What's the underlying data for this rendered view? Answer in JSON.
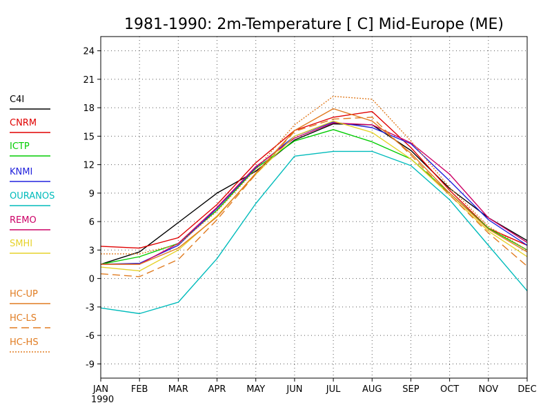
{
  "chart_data": {
    "type": "line",
    "title": "1981-1990: 2m-Temperature [  C] Mid-Europe (ME)",
    "categories": [
      "JAN",
      "FEB",
      "MAR",
      "APR",
      "MAY",
      "JUN",
      "JUL",
      "AUG",
      "SEP",
      "OCT",
      "NOV",
      "DEC"
    ],
    "x_sublabel": "1990",
    "xlabel": "",
    "ylabel": "",
    "ylim": [
      -10.5,
      25.5
    ],
    "yticks": [
      -9,
      -6,
      -3,
      0,
      3,
      6,
      9,
      12,
      15,
      18,
      21,
      24
    ],
    "grid": true,
    "legend_position": "left",
    "series": [
      {
        "name": "C4I",
        "color": "#000000",
        "style": "solid",
        "values": [
          1.5,
          2.8,
          5.9,
          9.0,
          11.3,
          14.6,
          16.3,
          16.2,
          13.5,
          9.5,
          6.4,
          4.0
        ]
      },
      {
        "name": "CNRM",
        "color": "#e00000",
        "style": "solid",
        "values": [
          3.4,
          3.2,
          4.3,
          7.8,
          12.2,
          15.6,
          17.0,
          17.6,
          13.8,
          9.3,
          5.3,
          3.5
        ]
      },
      {
        "name": "ICTP",
        "color": "#00cc00",
        "style": "solid",
        "values": [
          1.5,
          2.3,
          3.7,
          7.2,
          11.6,
          14.5,
          15.7,
          14.4,
          12.6,
          9.0,
          5.3,
          3.0
        ]
      },
      {
        "name": "KNMI",
        "color": "#2222dd",
        "style": "solid",
        "values": [
          1.5,
          1.6,
          3.5,
          7.4,
          11.7,
          15.0,
          16.5,
          15.9,
          14.2,
          10.3,
          6.2,
          3.5
        ]
      },
      {
        "name": "OURANOS",
        "color": "#00bbbb",
        "style": "solid",
        "values": [
          -3.1,
          -3.7,
          -2.5,
          2.1,
          7.9,
          12.9,
          13.4,
          13.4,
          11.9,
          8.3,
          3.5,
          -1.3
        ]
      },
      {
        "name": "REMO",
        "color": "#cc0066",
        "style": "solid",
        "values": [
          1.5,
          1.5,
          3.7,
          7.5,
          11.8,
          14.8,
          16.4,
          16.2,
          14.3,
          11.0,
          6.4,
          3.8
        ]
      },
      {
        "name": "SMHI",
        "color": "#e6d22a",
        "style": "solid",
        "values": [
          1.2,
          0.8,
          3.0,
          6.6,
          11.0,
          15.0,
          16.6,
          15.4,
          12.6,
          8.8,
          5.0,
          2.3
        ]
      },
      {
        "name": "HC-UP",
        "color": "#e07b20",
        "style": "solid",
        "values": [
          1.5,
          1.5,
          3.2,
          6.5,
          11.1,
          15.6,
          17.9,
          16.6,
          13.2,
          9.0,
          5.2,
          2.8
        ]
      },
      {
        "name": "HC-LS",
        "color": "#e07b20",
        "style": "dashed",
        "values": [
          0.5,
          0.2,
          2.0,
          6.2,
          11.0,
          15.5,
          16.8,
          17.0,
          13.0,
          8.8,
          4.8,
          1.3
        ]
      },
      {
        "name": "HC-HS",
        "color": "#e07b20",
        "style": "dotted",
        "values": [
          2.6,
          2.6,
          3.6,
          7.1,
          11.5,
          16.2,
          19.2,
          18.9,
          14.5,
          9.6,
          5.5,
          3.0
        ]
      }
    ]
  }
}
